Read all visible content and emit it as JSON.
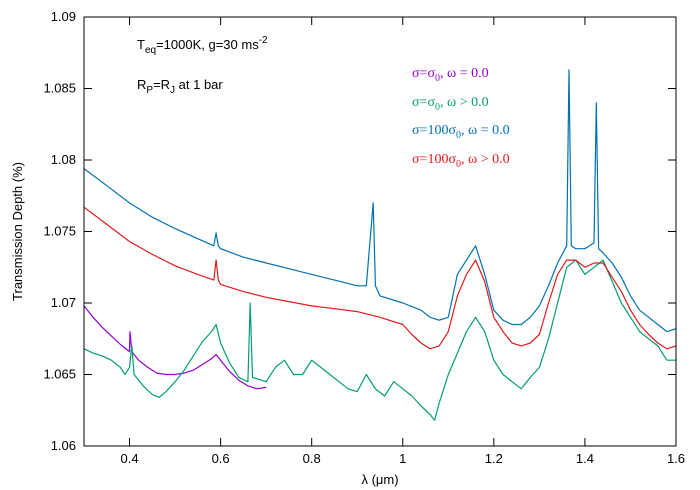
{
  "chart_data": {
    "type": "line",
    "xlabel": "λ (μm)",
    "ylabel": "Transmission Depth (%)",
    "xlim": [
      0.3,
      1.6
    ],
    "ylim": [
      1.06,
      1.09
    ],
    "x_ticks": [
      0.4,
      0.6,
      0.8,
      1.0,
      1.2,
      1.4,
      1.6
    ],
    "x_tick_labels": [
      "0.4",
      "0.6",
      "0.8",
      "1",
      "1.2",
      "1.4",
      "1.6"
    ],
    "y_ticks": [
      1.06,
      1.065,
      1.07,
      1.075,
      1.08,
      1.085,
      1.09
    ],
    "y_tick_labels": [
      "1.06",
      "1.065",
      "1.07",
      "1.075",
      "1.08",
      "1.085",
      "1.09"
    ],
    "grid": false,
    "legend_position": "top-right",
    "annotations": [
      {
        "base": "T",
        "sub": "eq",
        "rest": "=1000K, g=30 ms",
        "sup": "-2"
      },
      {
        "base": "R",
        "sub": "P",
        "rest": "=R",
        "sub2": "J",
        "tail": " at 1 bar"
      }
    ],
    "series": [
      {
        "name": "σ=σ0, ω = 0.0",
        "legend": {
          "pre": "σ=σ",
          "sub": "0",
          "post": ", ω = 0.0"
        },
        "color": "#9400d3",
        "x": [
          0.3,
          0.32,
          0.34,
          0.36,
          0.38,
          0.4,
          0.401,
          0.405,
          0.42,
          0.44,
          0.46,
          0.48,
          0.5,
          0.52,
          0.54,
          0.56,
          0.58,
          0.59,
          0.6,
          0.62,
          0.64,
          0.66,
          0.68,
          0.7
        ],
        "y": [
          1.0698,
          1.069,
          1.0683,
          1.0677,
          1.0671,
          1.0666,
          1.068,
          1.0666,
          1.066,
          1.0655,
          1.0651,
          1.065,
          1.065,
          1.0651,
          1.0653,
          1.0657,
          1.0661,
          1.0664,
          1.066,
          1.0652,
          1.0646,
          1.0642,
          1.064,
          1.0641
        ]
      },
      {
        "name": "σ=σ0, ω > 0.0",
        "legend": {
          "pre": "σ=σ",
          "sub": "0",
          "post": ", ω > 0.0"
        },
        "color": "#009e73",
        "x": [
          0.3,
          0.32,
          0.34,
          0.36,
          0.38,
          0.39,
          0.4,
          0.405,
          0.41,
          0.43,
          0.45,
          0.465,
          0.48,
          0.5,
          0.52,
          0.54,
          0.56,
          0.58,
          0.59,
          0.6,
          0.62,
          0.64,
          0.66,
          0.665,
          0.67,
          0.7,
          0.72,
          0.74,
          0.76,
          0.78,
          0.8,
          0.82,
          0.84,
          0.86,
          0.88,
          0.9,
          0.92,
          0.94,
          0.96,
          0.98,
          1.0,
          1.02,
          1.04,
          1.06,
          1.07,
          1.08,
          1.1,
          1.12,
          1.14,
          1.16,
          1.18,
          1.2,
          1.22,
          1.24,
          1.26,
          1.28,
          1.3,
          1.32,
          1.34,
          1.36,
          1.38,
          1.4,
          1.42,
          1.44,
          1.46,
          1.48,
          1.5,
          1.52,
          1.54,
          1.56,
          1.58,
          1.6
        ],
        "y": [
          1.0668,
          1.0665,
          1.0663,
          1.066,
          1.0655,
          1.065,
          1.0655,
          1.067,
          1.065,
          1.0642,
          1.0636,
          1.0634,
          1.0638,
          1.0645,
          1.0653,
          1.0663,
          1.0673,
          1.068,
          1.0685,
          1.0672,
          1.0658,
          1.0648,
          1.0645,
          1.07,
          1.0648,
          1.0645,
          1.0655,
          1.066,
          1.065,
          1.065,
          1.066,
          1.0655,
          1.065,
          1.0645,
          1.064,
          1.0638,
          1.065,
          1.064,
          1.0635,
          1.0645,
          1.064,
          1.0635,
          1.0628,
          1.0622,
          1.0618,
          1.063,
          1.065,
          1.0665,
          1.068,
          1.069,
          1.068,
          1.066,
          1.065,
          1.0645,
          1.064,
          1.0648,
          1.0655,
          1.0675,
          1.07,
          1.0725,
          1.073,
          1.072,
          1.0725,
          1.073,
          1.0715,
          1.07,
          1.069,
          1.068,
          1.0675,
          1.067,
          1.066,
          1.066
        ]
      },
      {
        "name": "σ=100σ0, ω = 0.0",
        "legend": {
          "pre": "σ=100σ",
          "sub": "0",
          "post": ", ω = 0.0"
        },
        "color": "#0072b2",
        "x": [
          0.3,
          0.35,
          0.4,
          0.45,
          0.5,
          0.55,
          0.585,
          0.59,
          0.595,
          0.6,
          0.65,
          0.7,
          0.75,
          0.8,
          0.85,
          0.9,
          0.92,
          0.935,
          0.94,
          0.95,
          1.0,
          1.04,
          1.06,
          1.08,
          1.1,
          1.12,
          1.14,
          1.16,
          1.18,
          1.2,
          1.22,
          1.24,
          1.26,
          1.28,
          1.3,
          1.32,
          1.34,
          1.36,
          1.365,
          1.37,
          1.38,
          1.4,
          1.42,
          1.425,
          1.43,
          1.44,
          1.46,
          1.48,
          1.5,
          1.52,
          1.54,
          1.56,
          1.58,
          1.6
        ],
        "y": [
          1.0794,
          1.0782,
          1.077,
          1.076,
          1.0752,
          1.0745,
          1.074,
          1.0749,
          1.074,
          1.0738,
          1.0732,
          1.0728,
          1.0724,
          1.072,
          1.0716,
          1.0712,
          1.0712,
          1.077,
          1.0712,
          1.0705,
          1.07,
          1.0695,
          1.069,
          1.0688,
          1.069,
          1.072,
          1.073,
          1.074,
          1.072,
          1.0695,
          1.0688,
          1.0685,
          1.0685,
          1.069,
          1.0698,
          1.0712,
          1.0728,
          1.074,
          1.0863,
          1.074,
          1.0738,
          1.0738,
          1.0742,
          1.084,
          1.0738,
          1.0735,
          1.0728,
          1.0718,
          1.0705,
          1.0695,
          1.069,
          1.0685,
          1.068,
          1.0682
        ]
      },
      {
        "name": "σ=100σ0, ω > 0.0",
        "legend": {
          "pre": "σ=100σ",
          "sub": "0",
          "post": ", ω > 0.0"
        },
        "color": "#e41a1c",
        "x": [
          0.3,
          0.35,
          0.4,
          0.45,
          0.5,
          0.55,
          0.585,
          0.59,
          0.595,
          0.6,
          0.65,
          0.7,
          0.75,
          0.8,
          0.85,
          0.9,
          0.95,
          1.0,
          1.02,
          1.04,
          1.06,
          1.08,
          1.1,
          1.12,
          1.14,
          1.16,
          1.18,
          1.2,
          1.22,
          1.24,
          1.26,
          1.28,
          1.3,
          1.32,
          1.34,
          1.36,
          1.38,
          1.4,
          1.42,
          1.44,
          1.46,
          1.48,
          1.5,
          1.52,
          1.54,
          1.56,
          1.58,
          1.6
        ],
        "y": [
          1.0767,
          1.0755,
          1.0743,
          1.0734,
          1.0726,
          1.072,
          1.0716,
          1.073,
          1.0716,
          1.0713,
          1.0708,
          1.0704,
          1.0701,
          1.0698,
          1.0696,
          1.0694,
          1.069,
          1.0685,
          1.0678,
          1.0672,
          1.0668,
          1.067,
          1.068,
          1.0705,
          1.072,
          1.073,
          1.0715,
          1.069,
          1.068,
          1.0672,
          1.067,
          1.0672,
          1.0678,
          1.07,
          1.072,
          1.073,
          1.073,
          1.0725,
          1.0728,
          1.0728,
          1.0718,
          1.0708,
          1.0695,
          1.0685,
          1.0678,
          1.0672,
          1.0668,
          1.067
        ]
      }
    ]
  }
}
